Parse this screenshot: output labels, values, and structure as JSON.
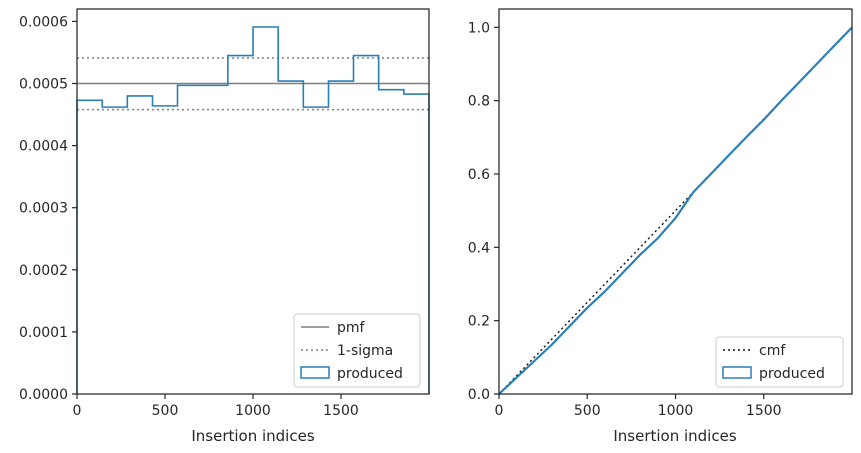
{
  "chart_data": [
    {
      "type": "histogram",
      "xlabel": "Insertion indices",
      "ylabel": "",
      "xlim": [
        0,
        2000
      ],
      "ylim": [
        0,
        0.00062
      ],
      "xticks": [
        0,
        500,
        1000,
        1500
      ],
      "xtick_labels": [
        "0",
        "500",
        "1000",
        "1500"
      ],
      "yticks": [
        0,
        0.0001,
        0.0002,
        0.0003,
        0.0004,
        0.0005,
        0.0006
      ],
      "ytick_labels": [
        "0.0000",
        "0.0001",
        "0.0002",
        "0.0003",
        "0.0004",
        "0.0005",
        "0.0006"
      ],
      "bin_edges": [
        0,
        143,
        286,
        429,
        571,
        714,
        857,
        1000,
        1143,
        1286,
        1429,
        1571,
        1714,
        1857,
        2000
      ],
      "series": [
        {
          "name": "produced",
          "kind": "step-histogram",
          "color": "#2a7fb8",
          "values": [
            0.000473,
            0.000462,
            0.00048,
            0.000464,
            0.000497,
            0.000497,
            0.000545,
            0.000591,
            0.000504,
            0.000462,
            0.000504,
            0.000545,
            0.00049,
            0.000483
          ]
        }
      ],
      "hlines": [
        {
          "name": "pmf",
          "y": 0.0005,
          "color": "#808080",
          "style": "solid"
        },
        {
          "name": "1-sigma",
          "y": 0.000541,
          "color": "#808080",
          "style": "dotted"
        },
        {
          "name": "1-sigma-lower",
          "y": 0.000458,
          "color": "#808080",
          "style": "dotted"
        }
      ],
      "legend": {
        "placement": "lower-right",
        "entries": [
          {
            "label": "pmf",
            "style": "solid",
            "color": "#808080"
          },
          {
            "label": "1-sigma",
            "style": "dotted",
            "color": "#808080"
          },
          {
            "label": "produced",
            "style": "patch",
            "color": "#2a7fb8"
          }
        ]
      }
    },
    {
      "type": "line",
      "xlabel": "Insertion indices",
      "ylabel": "",
      "xlim": [
        0,
        2000
      ],
      "ylim": [
        0,
        1.05
      ],
      "xticks": [
        0,
        500,
        1000,
        1500
      ],
      "xtick_labels": [
        "0",
        "500",
        "1000",
        "1500"
      ],
      "yticks": [
        0,
        0.2,
        0.4,
        0.6,
        0.8,
        1.0
      ],
      "ytick_labels": [
        "0.0",
        "0.2",
        "0.4",
        "0.6",
        "0.8",
        "1.0"
      ],
      "series": [
        {
          "name": "cmf",
          "style": "dotted",
          "color": "#111111",
          "x": [
            0,
            2000
          ],
          "values": [
            0,
            1.0
          ]
        },
        {
          "name": "produced",
          "style": "solid",
          "color": "#2a7fb8",
          "x": [
            0,
            100,
            200,
            300,
            400,
            500,
            600,
            700,
            800,
            900,
            1000,
            1100,
            1200,
            1300,
            1400,
            1500,
            1600,
            1700,
            1800,
            1900,
            2000
          ],
          "values": [
            0,
            0.045,
            0.09,
            0.135,
            0.185,
            0.235,
            0.28,
            0.33,
            0.38,
            0.425,
            0.48,
            0.55,
            0.6,
            0.65,
            0.7,
            0.748,
            0.8,
            0.85,
            0.9,
            0.95,
            1.0
          ]
        }
      ],
      "legend": {
        "placement": "lower-right",
        "entries": [
          {
            "label": "cmf",
            "style": "dotted",
            "color": "#111111"
          },
          {
            "label": "produced",
            "style": "patch",
            "color": "#2a7fb8"
          }
        ]
      }
    }
  ]
}
